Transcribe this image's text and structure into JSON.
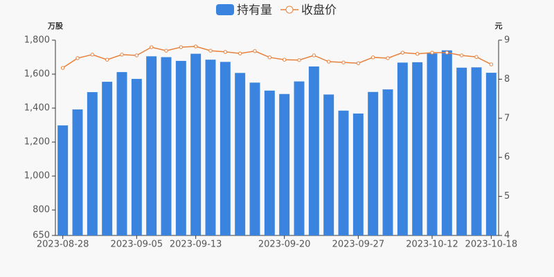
{
  "chart_data": {
    "type": "bar_line",
    "y_axis_label": "万股",
    "y2_axis_label": "元",
    "categories": [
      "2023-08-28",
      null,
      null,
      null,
      null,
      "2023-09-05",
      null,
      null,
      null,
      "2023-09-13",
      null,
      null,
      null,
      null,
      null,
      "2023-09-20",
      null,
      null,
      null,
      null,
      "2023-09-27",
      null,
      null,
      null,
      null,
      "2023-10-12",
      null,
      null,
      null,
      "2023-10-18"
    ],
    "series": [
      {
        "name": "持有量",
        "type": "bar",
        "color": "#3a84e0",
        "values": [
          1298,
          1392,
          1494,
          1555,
          1612,
          1572,
          1705,
          1700,
          1678,
          1720,
          1685,
          1672,
          1607,
          1550,
          1503,
          1483,
          1557,
          1645,
          1480,
          1385,
          1368,
          1495,
          1510,
          1668,
          1670,
          1722,
          1740,
          1638,
          1640,
          1608
        ]
      },
      {
        "name": "收盘价",
        "type": "line",
        "axis": "y2",
        "color": "#e8803a",
        "values": [
          8.29,
          8.54,
          8.63,
          8.5,
          8.63,
          8.61,
          8.82,
          8.73,
          8.82,
          8.84,
          8.73,
          8.7,
          8.66,
          8.72,
          8.56,
          8.5,
          8.49,
          8.61,
          8.45,
          8.43,
          8.41,
          8.56,
          8.54,
          8.68,
          8.65,
          8.68,
          8.68,
          8.61,
          8.57,
          8.38
        ]
      }
    ],
    "ylim": [
      650,
      1800
    ],
    "yticks": [
      650,
      800,
      {
        "value": 1000,
        "label": "1,000"
      },
      {
        "value": 1200,
        "label": "1,200"
      },
      {
        "value": 1400,
        "label": "1,400"
      },
      {
        "value": 1600,
        "label": "1,600"
      },
      {
        "value": 1800,
        "label": "1,800"
      }
    ],
    "y2lim": [
      4,
      9
    ],
    "y2ticks": [
      4,
      5,
      6,
      7,
      8,
      9
    ]
  }
}
